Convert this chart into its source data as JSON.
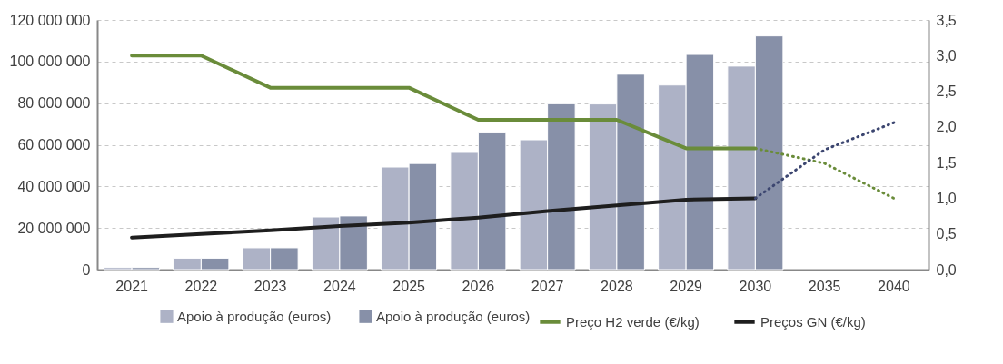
{
  "chart_data": {
    "type": "bar",
    "categories": [
      "2021",
      "2022",
      "2023",
      "2024",
      "2025",
      "2026",
      "2027",
      "2028",
      "2029",
      "2030",
      "2035",
      "2040"
    ],
    "series": [
      {
        "name": "Apoio à produção (euros)",
        "color": "#adb2c6",
        "values": [
          1000000,
          5500000,
          10500000,
          25300000,
          49300000,
          56300000,
          62400000,
          79600000,
          88700000,
          97800000,
          null,
          null
        ]
      },
      {
        "name": "Apoio à produção (euros)",
        "color": "#8790a8",
        "values": [
          1000000,
          5500000,
          10500000,
          25800000,
          51000000,
          66000000,
          79700000,
          93900000,
          103400000,
          112300000,
          null,
          null
        ]
      },
      {
        "name": "Preço H2 verde (€/kg)",
        "type": "line",
        "axis": "y2",
        "color": "#6a8c3a",
        "line_style": "solid",
        "values": [
          3.0,
          3.0,
          2.55,
          2.55,
          2.55,
          2.1,
          2.1,
          2.1,
          1.7,
          1.7,
          null,
          null
        ]
      },
      {
        "name": "Preços GN (€/kg)",
        "type": "line",
        "axis": "y2",
        "color": "#1e1e1e",
        "line_style": "solid",
        "values": [
          0.45,
          0.5,
          0.55,
          0.61,
          0.66,
          0.73,
          0.82,
          0.9,
          0.98,
          1.0,
          null,
          null
        ]
      },
      {
        "type": "line",
        "axis": "y2",
        "color": "#6a8c3a",
        "line_style": "dotted",
        "values": [
          null,
          null,
          null,
          null,
          null,
          null,
          null,
          null,
          null,
          1.7,
          1.49,
          1.0
        ]
      },
      {
        "type": "line",
        "axis": "y2",
        "color": "#3c4670",
        "line_style": "dotted",
        "values": [
          null,
          null,
          null,
          null,
          null,
          null,
          null,
          null,
          null,
          1.0,
          1.68,
          2.06
        ]
      }
    ],
    "ylim": [
      0,
      120000000
    ],
    "yticks": [
      0,
      {
        "value": 20000000,
        "label": "20 000 000"
      },
      {
        "value": 40000000,
        "label": "40 000 000"
      },
      {
        "value": 60000000,
        "label": "60 000 000"
      },
      {
        "value": 80000000,
        "label": "80 000 000"
      },
      {
        "value": 100000000,
        "label": "100 000 000"
      },
      {
        "value": 120000000,
        "label": "120 000 000"
      }
    ],
    "y2lim": [
      0,
      3.5
    ],
    "y2ticks": [
      {
        "value": 0,
        "label": "0,0"
      },
      {
        "value": 0.5,
        "label": "0,5"
      },
      {
        "value": 1,
        "label": "1,0"
      },
      {
        "value": 1.5,
        "label": "1,5"
      },
      {
        "value": 2,
        "label": "2,0"
      },
      {
        "value": 2.5,
        "label": "2,5"
      },
      {
        "value": 3,
        "label": "3,0"
      },
      {
        "value": 3.5,
        "label": "3,5"
      }
    ],
    "grid": "y",
    "legend": "bottom"
  }
}
